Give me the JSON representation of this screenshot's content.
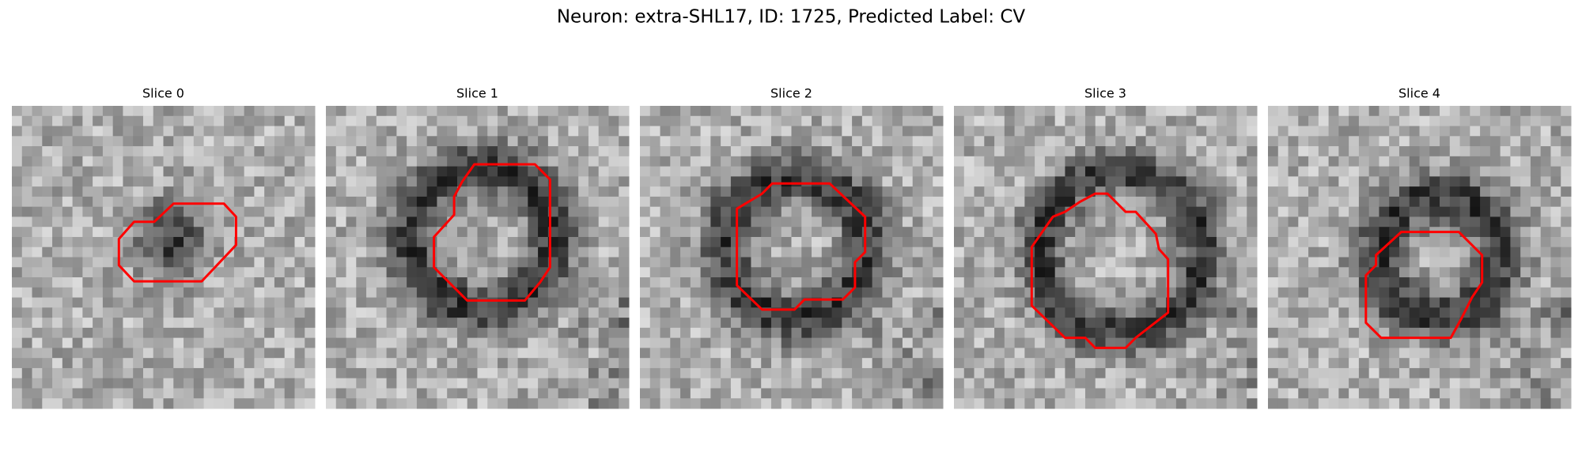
{
  "title": "Neuron: extra-SHL17, ID: 1725, Predicted Label: CV",
  "panels": [
    {
      "title": "Slice 0"
    },
    {
      "title": "Slice 1"
    },
    {
      "title": "Slice 2"
    },
    {
      "title": "Slice 3"
    },
    {
      "title": "Slice 4"
    }
  ]
}
